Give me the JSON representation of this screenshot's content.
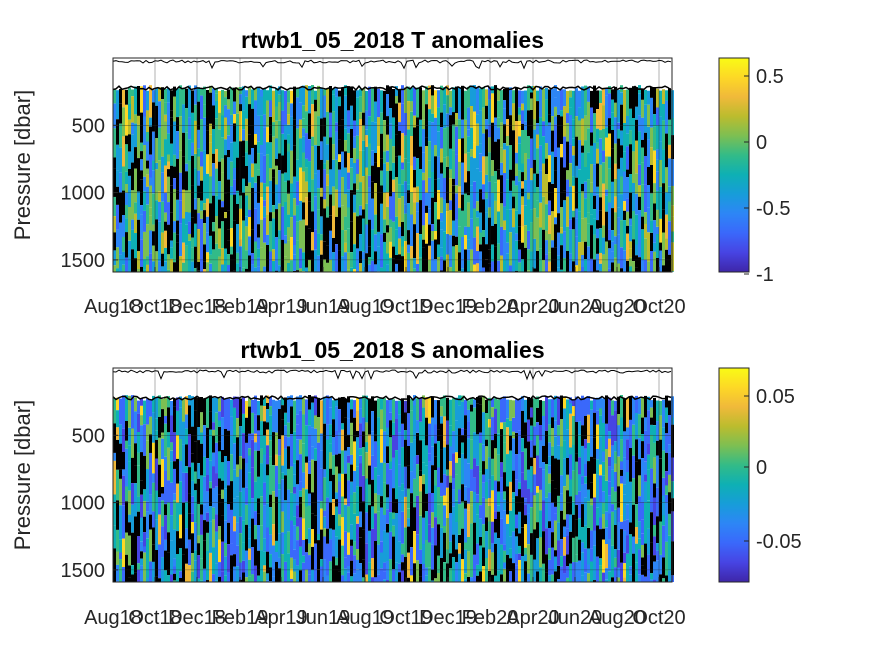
{
  "figure": {
    "background": "#ffffff"
  },
  "colormap": [
    "#3e26a8",
    "#4744e3",
    "#3a68fb",
    "#2d86f6",
    "#179dd9",
    "#0eb0b4",
    "#32bb88",
    "#7cbf53",
    "#bbbc2e",
    "#f0b93a",
    "#fdd826",
    "#f9fb15"
  ],
  "chart_data": [
    {
      "type": "heatmap",
      "title": "rtwb1_05_2018 T anomalies",
      "ylabel": "Pressure [dbar]",
      "y_ticks": [
        500,
        1000,
        1500
      ],
      "ylim": [
        1590,
        0
      ],
      "x_ticks": [
        "Aug18",
        "Oct18",
        "Dec18",
        "Feb19",
        "Apr19",
        "Jun19",
        "Aug19",
        "Oct19",
        "Dec19",
        "Feb20",
        "Apr20",
        "Jun20",
        "Aug20",
        "Oct20"
      ],
      "grid": true,
      "colorbar": {
        "ticks": [
          0.5,
          0,
          -0.5,
          -1
        ],
        "tick_labels": [
          "0.5",
          "0",
          "-0.5",
          "-1"
        ],
        "range": [
          -1,
          0.6
        ]
      }
    },
    {
      "type": "heatmap",
      "title": "rtwb1_05_2018 S anomalies",
      "ylabel": "Pressure [dbar]",
      "y_ticks": [
        500,
        1000,
        1500
      ],
      "ylim": [
        1590,
        0
      ],
      "x_ticks": [
        "Aug18",
        "Oct18",
        "Dec18",
        "Feb19",
        "Apr19",
        "Jun19",
        "Aug19",
        "Oct19",
        "Dec19",
        "Feb20",
        "Apr20",
        "Jun20",
        "Aug20",
        "Oct20"
      ],
      "grid": true,
      "colorbar": {
        "ticks": [
          0.05,
          0,
          -0.05
        ],
        "tick_labels": [
          "0.05",
          "0",
          "-0.05"
        ],
        "range": [
          -0.08,
          0.066
        ]
      }
    }
  ]
}
